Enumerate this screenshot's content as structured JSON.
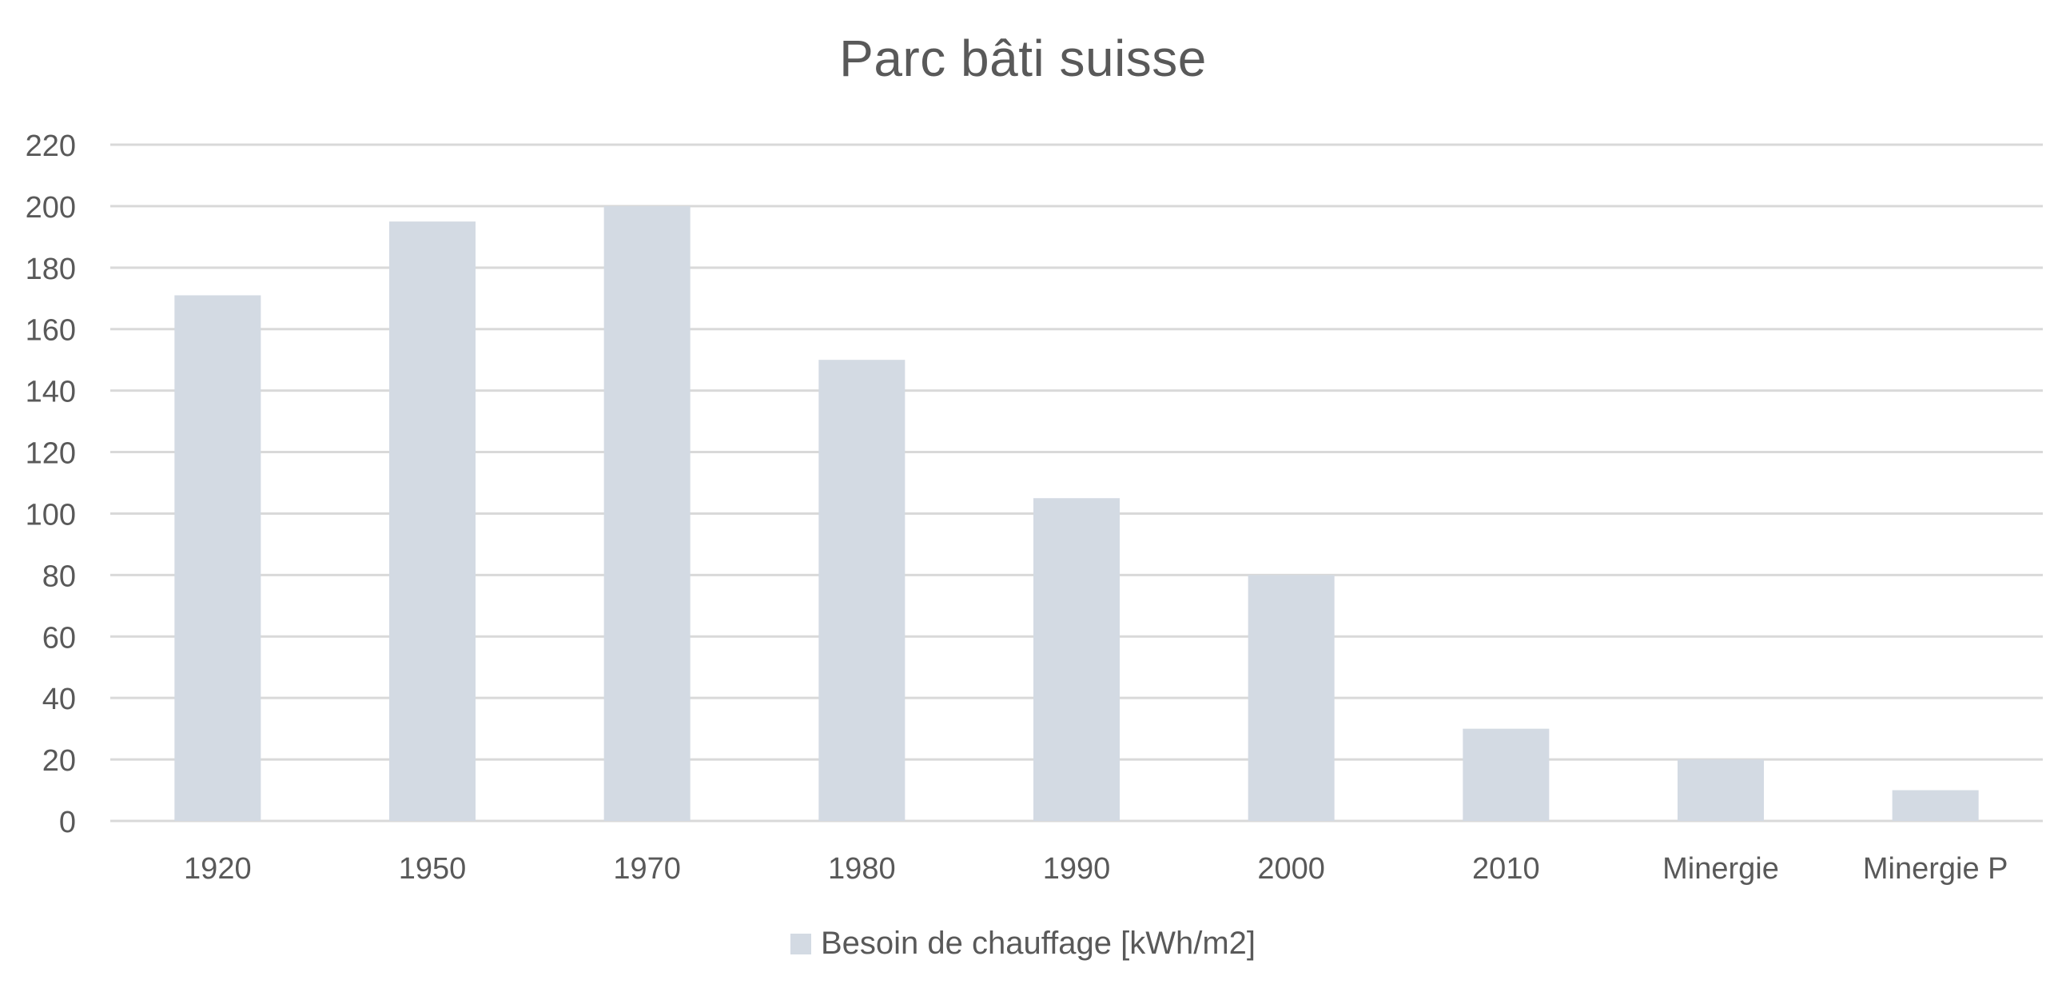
{
  "chart_data": {
    "type": "bar",
    "title": "Parc bâti suisse",
    "categories": [
      "1920",
      "1950",
      "1970",
      "1980",
      "1990",
      "2000",
      "2010",
      "Minergie",
      "Minergie P"
    ],
    "series": [
      {
        "name": "Besoin de chauffage [kWh/m2]",
        "values": [
          171,
          195,
          200,
          150,
          105,
          80,
          30,
          20,
          10
        ],
        "color": "#d3dae3"
      }
    ],
    "ylim": [
      0,
      220
    ],
    "yticks": [
      0,
      20,
      40,
      60,
      80,
      100,
      120,
      140,
      160,
      180,
      200,
      220
    ],
    "ytick_labels": [
      "0",
      "20",
      "40",
      "60",
      "80",
      "100",
      "120",
      "140",
      "160",
      "180",
      "200",
      "220"
    ],
    "grid": true,
    "gridline_color": "#d9d9d9",
    "text_color": "#595959",
    "legend_position": "bottom"
  }
}
